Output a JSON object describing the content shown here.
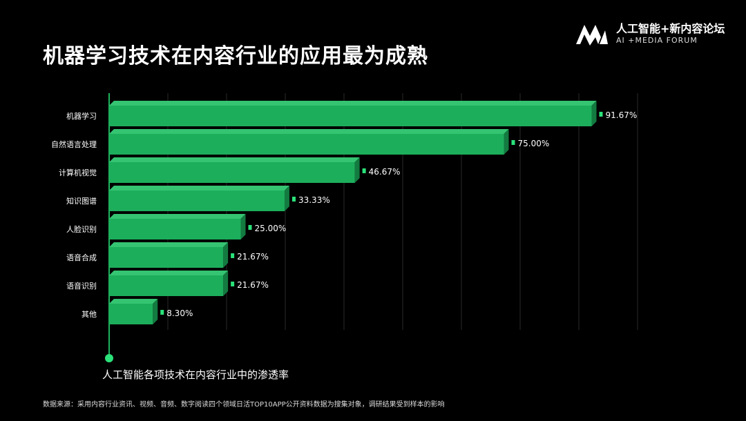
{
  "header": {
    "title": "机器学习技术在内容行业的应用最为成熟",
    "logo_cn": "人工智能+新内容论坛",
    "logo_en": "AI +MEDIA FORUM",
    "logo_icon": "ma-logo-icon"
  },
  "colors": {
    "background": "#000000",
    "bar_front": "#1dae5c",
    "bar_top": "#35c472",
    "bar_side": "#137a40",
    "marker": "#2be27a",
    "grid": "#2a2a2a",
    "axis": "#1fb45e",
    "text": "#ffffff"
  },
  "chart_data": {
    "type": "bar",
    "orientation": "horizontal",
    "title": "机器学习技术在内容行业的应用最为成熟",
    "caption": "人工智能各项技术在内容行业中的渗透率",
    "categories": [
      "机器学习",
      "自然语言处理",
      "计算机视觉",
      "知识图谱",
      "人脸识别",
      "语音合成",
      "语音识别",
      "其他"
    ],
    "values": [
      91.67,
      75.0,
      46.67,
      33.33,
      25.0,
      21.67,
      21.67,
      8.3
    ],
    "value_labels": [
      "91.67%",
      "75.00%",
      "46.67%",
      "33.33%",
      "25.00%",
      "21.67%",
      "21.67%",
      "8.30%"
    ],
    "xlim": [
      0,
      100
    ],
    "xlabel": "",
    "ylabel": "",
    "grid": true,
    "unit": "%"
  },
  "footer": {
    "source": "数据来源：采用内容行业资讯、视频、音频、数字阅读四个领域日活TOP10APP公开资料数据为搜集对象，调研结果受到样本的影响"
  }
}
